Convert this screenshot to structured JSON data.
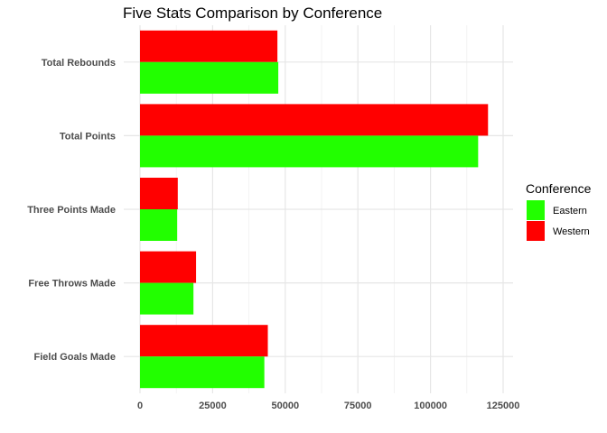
{
  "chart_data": {
    "type": "bar",
    "orientation": "horizontal",
    "title": "Five Stats Comparison by Conference",
    "xlabel": "",
    "ylabel": "",
    "categories": [
      "Total Rebounds",
      "Total Points",
      "Three Points Made",
      "Free Throws Made",
      "Field Goals Made"
    ],
    "series": [
      {
        "name": "Western",
        "color": "#ff0000",
        "values": [
          47300,
          119800,
          13000,
          19300,
          44000
        ]
      },
      {
        "name": "Eastern",
        "color": "#22ff00",
        "values": [
          47600,
          116400,
          12800,
          18400,
          42800
        ]
      }
    ],
    "xlim": [
      0,
      125000
    ],
    "xticks": [
      0,
      25000,
      50000,
      75000,
      100000,
      125000
    ],
    "xtick_labels": [
      "0",
      "25000",
      "50000",
      "75000",
      "100000",
      "125000"
    ],
    "grid": true,
    "legend": {
      "title": "Conference",
      "position": "right",
      "entries": [
        {
          "name": "Eastern",
          "color": "#22ff00"
        },
        {
          "name": "Western",
          "color": "#ff0000"
        }
      ]
    }
  }
}
